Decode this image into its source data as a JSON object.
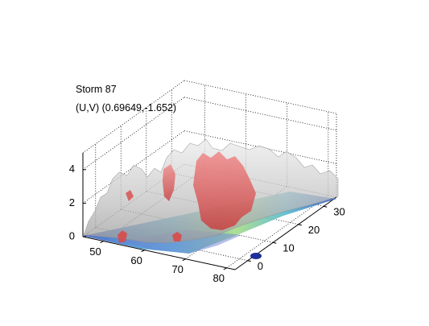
{
  "chart_data": {
    "type": "surface",
    "title": "Storm 87",
    "subtitle": "(U,V) (0.69649,-1.652)",
    "xlabel": "",
    "ylabel": "",
    "zlabel": "",
    "x_ticks": [
      50,
      60,
      70,
      80
    ],
    "y_ticks": [
      0,
      10,
      20,
      30
    ],
    "z_ticks": [
      0,
      2,
      4
    ],
    "xlim": [
      45,
      82
    ],
    "ylim": [
      -5,
      35
    ],
    "zlim": [
      0,
      5
    ],
    "grid": true,
    "layers": [
      "base surface colormap",
      "gray isosurface",
      "red isosurface"
    ],
    "colors": {
      "base_low": "#2a3fb5",
      "base_mid": "#3fb7c9",
      "base_high": "#b8e07a",
      "isosurface_gray": "#c8c8c8",
      "isosurface_red": "#e05050"
    }
  }
}
